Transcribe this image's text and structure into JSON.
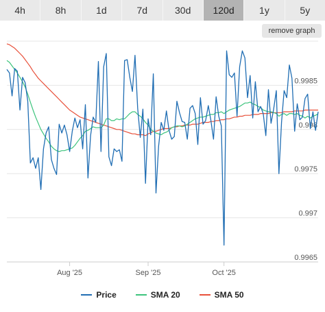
{
  "tabs": [
    {
      "label": "4h",
      "active": false
    },
    {
      "label": "8h",
      "active": false
    },
    {
      "label": "1d",
      "active": false
    },
    {
      "label": "7d",
      "active": false
    },
    {
      "label": "30d",
      "active": false
    },
    {
      "label": "120d",
      "active": true
    },
    {
      "label": "1y",
      "active": false
    },
    {
      "label": "5y",
      "active": false
    }
  ],
  "remove_graph_label": "remove graph",
  "colors": {
    "price": "#1f6db3",
    "sma20": "#3cc47c",
    "sma50": "#e8503a",
    "grid": "#e6e6e6",
    "axis_text": "#555555"
  },
  "chart_data": {
    "type": "line",
    "xlabel": "",
    "ylabel": "",
    "ylim": [
      0.9965,
      0.999
    ],
    "yticks": [
      0.9965,
      0.997,
      0.9975,
      0.998,
      0.9985
    ],
    "ytick_labels": [
      "0.9965",
      "0.997",
      "0.9975",
      "0.998",
      "0.9985"
    ],
    "xtick_labels": [
      {
        "label": "Aug '25",
        "index": 24
      },
      {
        "label": "Sep '25",
        "index": 54
      },
      {
        "label": "Oct '25",
        "index": 83
      }
    ],
    "x_count": 120,
    "series": [
      {
        "name": "Price",
        "values": [
          0.99868,
          0.99864,
          0.99838,
          0.99869,
          0.99866,
          0.99822,
          0.99859,
          0.99853,
          0.99832,
          0.99762,
          0.99768,
          0.99756,
          0.99768,
          0.99732,
          0.99778,
          0.99796,
          0.99803,
          0.99766,
          0.99756,
          0.99749,
          0.99806,
          0.99796,
          0.99805,
          0.99794,
          0.99775,
          0.99798,
          0.99813,
          0.99802,
          0.99811,
          0.99778,
          0.99828,
          0.99745,
          0.99793,
          0.99814,
          0.99808,
          0.99877,
          0.99775,
          0.99871,
          0.99886,
          0.99769,
          0.99759,
          0.99778,
          0.99775,
          0.99777,
          0.99764,
          0.99878,
          0.99879,
          0.99859,
          0.99843,
          0.99884,
          0.99824,
          0.99791,
          0.99823,
          0.99739,
          0.99812,
          0.99794,
          0.99863,
          0.99728,
          0.99781,
          0.99808,
          0.99799,
          0.99821,
          0.99799,
          0.99789,
          0.99792,
          0.99832,
          0.99819,
          0.99809,
          0.99808,
          0.99789,
          0.99824,
          0.99827,
          0.99818,
          0.99783,
          0.99836,
          0.99806,
          0.9981,
          0.99827,
          0.9981,
          0.99789,
          0.99837,
          0.99815,
          0.99804,
          0.99669,
          0.99889,
          0.99862,
          0.99859,
          0.99864,
          0.99815,
          0.99871,
          0.99889,
          0.99881,
          0.99836,
          0.99861,
          0.99813,
          0.99854,
          0.9982,
          0.99826,
          0.99818,
          0.99793,
          0.99845,
          0.99807,
          0.99823,
          0.99844,
          0.9975,
          0.99808,
          0.99844,
          0.99836,
          0.99873,
          0.99858,
          0.99798,
          0.99829,
          0.99811,
          0.99814,
          0.99835,
          0.9984,
          0.99801,
          0.9982,
          0.99799,
          0.9982
        ]
      },
      {
        "name": "SMA 20",
        "values": [
          0.99878,
          0.99876,
          0.99872,
          0.99868,
          0.99864,
          0.99859,
          0.99854,
          0.99848,
          0.9984,
          0.99831,
          0.99822,
          0.99814,
          0.99807,
          0.998,
          0.99795,
          0.9979,
          0.99786,
          0.99781,
          0.99778,
          0.99776,
          0.99775,
          0.99776,
          0.99776,
          0.99777,
          0.99778,
          0.99779,
          0.99782,
          0.99786,
          0.9979,
          0.99793,
          0.99798,
          0.99799,
          0.99801,
          0.99803,
          0.99802,
          0.99802,
          0.99802,
          0.99805,
          0.99812,
          0.99812,
          0.9981,
          0.9981,
          0.99812,
          0.99811,
          0.99812,
          0.99812,
          0.99815,
          0.99818,
          0.9982,
          0.9982,
          0.99817,
          0.99815,
          0.99812,
          0.99808,
          0.99805,
          0.998,
          0.99798,
          0.99796,
          0.99795,
          0.99794,
          0.99796,
          0.99797,
          0.99799,
          0.99802,
          0.99803,
          0.99804,
          0.99804,
          0.99803,
          0.99804,
          0.99806,
          0.99808,
          0.9981,
          0.99812,
          0.99813,
          0.99814,
          0.99814,
          0.99815,
          0.99816,
          0.99817,
          0.99817,
          0.99819,
          0.99819,
          0.9982,
          0.99818,
          0.9982,
          0.99822,
          0.99823,
          0.99824,
          0.99825,
          0.99826,
          0.99828,
          0.9983,
          0.9983,
          0.99831,
          0.99829,
          0.99828,
          0.99826,
          0.99825,
          0.99822,
          0.99821,
          0.9982,
          0.9982,
          0.99819,
          0.99818,
          0.99815,
          0.99817,
          0.99818,
          0.99816,
          0.99818,
          0.99818,
          0.99817,
          0.99818,
          0.99816,
          0.99815,
          0.99813,
          0.99815,
          0.99813,
          0.99815,
          0.99816,
          0.99818
        ]
      },
      {
        "name": "SMA 50",
        "values": [
          0.99897,
          0.99896,
          0.99894,
          0.99892,
          0.99889,
          0.99886,
          0.99883,
          0.99879,
          0.99875,
          0.99871,
          0.99866,
          0.99862,
          0.99858,
          0.99855,
          0.99852,
          0.99849,
          0.99846,
          0.99843,
          0.9984,
          0.99837,
          0.99834,
          0.99831,
          0.99828,
          0.99825,
          0.99822,
          0.9982,
          0.99818,
          0.99816,
          0.99814,
          0.99813,
          0.99812,
          0.99811,
          0.9981,
          0.99809,
          0.99808,
          0.99807,
          0.99806,
          0.99805,
          0.99804,
          0.99803,
          0.99802,
          0.99801,
          0.998,
          0.998,
          0.99799,
          0.99798,
          0.99797,
          0.99796,
          0.99795,
          0.99795,
          0.99794,
          0.99794,
          0.99794,
          0.99793,
          0.99795,
          0.99796,
          0.99798,
          0.99798,
          0.99799,
          0.998,
          0.99801,
          0.99801,
          0.99801,
          0.99802,
          0.99803,
          0.99803,
          0.99804,
          0.99804,
          0.99805,
          0.99805,
          0.99805,
          0.99806,
          0.99806,
          0.99806,
          0.99807,
          0.99808,
          0.99808,
          0.99808,
          0.99809,
          0.99809,
          0.9981,
          0.9981,
          0.99811,
          0.99811,
          0.99812,
          0.99812,
          0.99813,
          0.99814,
          0.99814,
          0.99815,
          0.99815,
          0.99816,
          0.99816,
          0.99816,
          0.99817,
          0.99817,
          0.99817,
          0.99818,
          0.99818,
          0.99818,
          0.99818,
          0.99819,
          0.99819,
          0.99819,
          0.99819,
          0.99819,
          0.9982,
          0.9982,
          0.9982,
          0.9982,
          0.99821,
          0.99821,
          0.99821,
          0.99821,
          0.99822,
          0.99822,
          0.99822,
          0.99822,
          0.99822,
          0.99822
        ]
      }
    ],
    "legend": "bottom",
    "grid": true
  }
}
